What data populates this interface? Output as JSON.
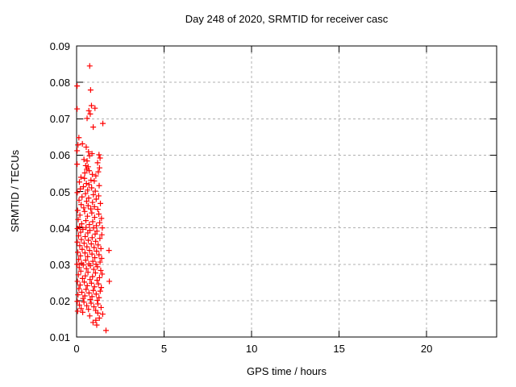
{
  "window": {
    "background_color": "#ffffff"
  },
  "chart_data": {
    "type": "scatter",
    "title": "Day 248 of 2020, SRMTID for receiver casc",
    "xlabel": "GPS time / hours",
    "ylabel": "SRMTID / TECUs",
    "xlim": [
      0,
      24
    ],
    "ylim": [
      0.01,
      0.09
    ],
    "xtick_values": [
      0,
      5,
      10,
      15,
      20
    ],
    "xtick_labels": [
      "0",
      "5",
      "10",
      "15",
      "20"
    ],
    "ytick_values": [
      0.01,
      0.02,
      0.03,
      0.04,
      0.05,
      0.06,
      0.07,
      0.08,
      0.09
    ],
    "ytick_labels": [
      "0.01",
      "0.02",
      "0.03",
      "0.04",
      "0.05",
      "0.06",
      "0.07",
      "0.08",
      "0.09"
    ],
    "grid": true,
    "legend_position": "none",
    "marker": "plus",
    "marker_color": "#ff0000",
    "grid_color": "#b0b0b0",
    "axis_color": "#000000",
    "points": [
      [
        0.75,
        0.0845
      ],
      [
        0.03,
        0.079
      ],
      [
        0.8,
        0.0779
      ],
      [
        0.85,
        0.0736
      ],
      [
        1.05,
        0.0729
      ],
      [
        0.03,
        0.0727
      ],
      [
        0.7,
        0.0722
      ],
      [
        0.78,
        0.0713
      ],
      [
        0.6,
        0.0701
      ],
      [
        1.5,
        0.0687
      ],
      [
        0.95,
        0.0677
      ],
      [
        0.13,
        0.0648
      ],
      [
        0.33,
        0.0631
      ],
      [
        0.08,
        0.0628
      ],
      [
        0.55,
        0.0622
      ],
      [
        0.03,
        0.0612
      ],
      [
        0.68,
        0.0609
      ],
      [
        0.88,
        0.0604
      ],
      [
        1.28,
        0.0601
      ],
      [
        0.74,
        0.0598
      ],
      [
        1.34,
        0.0592
      ],
      [
        0.42,
        0.0588
      ],
      [
        0.6,
        0.0584
      ],
      [
        1.2,
        0.0579
      ],
      [
        0.03,
        0.0575
      ],
      [
        0.52,
        0.0571
      ],
      [
        0.66,
        0.0568
      ],
      [
        1.31,
        0.0565
      ],
      [
        0.58,
        0.0561
      ],
      [
        0.72,
        0.0557
      ],
      [
        1.24,
        0.0554
      ],
      [
        0.47,
        0.0551
      ],
      [
        0.9,
        0.0547
      ],
      [
        1.1,
        0.0543
      ],
      [
        0.25,
        0.0539
      ],
      [
        0.45,
        0.0536
      ],
      [
        0.82,
        0.0531
      ],
      [
        1.01,
        0.0529
      ],
      [
        0.16,
        0.0526
      ],
      [
        0.56,
        0.0522
      ],
      [
        0.71,
        0.0519
      ],
      [
        1.29,
        0.0516
      ],
      [
        0.39,
        0.0513
      ],
      [
        0.86,
        0.051
      ],
      [
        0.21,
        0.0507
      ],
      [
        0.63,
        0.0504
      ],
      [
        1.07,
        0.0501
      ],
      [
        0.04,
        0.0497
      ],
      [
        0.51,
        0.0494
      ],
      [
        0.96,
        0.0491
      ],
      [
        1.26,
        0.0488
      ],
      [
        0.31,
        0.0485
      ],
      [
        0.69,
        0.0482
      ],
      [
        1.12,
        0.0479
      ],
      [
        0.14,
        0.0476
      ],
      [
        0.57,
        0.0473
      ],
      [
        0.91,
        0.047
      ],
      [
        1.36,
        0.0467
      ],
      [
        0.26,
        0.0464
      ],
      [
        0.66,
        0.0461
      ],
      [
        1.02,
        0.0458
      ],
      [
        0.41,
        0.0455
      ],
      [
        0.81,
        0.0452
      ],
      [
        1.21,
        0.0451
      ],
      [
        0.06,
        0.0448
      ],
      [
        0.46,
        0.0445
      ],
      [
        0.87,
        0.0441
      ],
      [
        1.27,
        0.0438
      ],
      [
        0.19,
        0.0435
      ],
      [
        0.62,
        0.0432
      ],
      [
        1.03,
        0.0429
      ],
      [
        1.42,
        0.0426
      ],
      [
        0.09,
        0.0423
      ],
      [
        0.53,
        0.042
      ],
      [
        0.92,
        0.0417
      ],
      [
        1.32,
        0.0414
      ],
      [
        0.29,
        0.0411
      ],
      [
        0.73,
        0.0409
      ],
      [
        1.13,
        0.0406
      ],
      [
        0.17,
        0.0403
      ],
      [
        0.54,
        0.0401
      ],
      [
        0.97,
        0.04
      ],
      [
        1.47,
        0.04
      ],
      [
        0.05,
        0.0398
      ],
      [
        0.36,
        0.0396
      ],
      [
        0.76,
        0.0393
      ],
      [
        1.16,
        0.0391
      ],
      [
        0.23,
        0.0388
      ],
      [
        0.64,
        0.0386
      ],
      [
        1.06,
        0.0383
      ],
      [
        1.44,
        0.0381
      ],
      [
        0.11,
        0.0378
      ],
      [
        0.49,
        0.0376
      ],
      [
        0.89,
        0.0373
      ],
      [
        1.33,
        0.0371
      ],
      [
        0.27,
        0.0368
      ],
      [
        0.67,
        0.0366
      ],
      [
        1.09,
        0.0363
      ],
      [
        0.04,
        0.0361
      ],
      [
        0.43,
        0.0358
      ],
      [
        0.84,
        0.0356
      ],
      [
        1.23,
        0.0353
      ],
      [
        0.18,
        0.0351
      ],
      [
        0.59,
        0.0348
      ],
      [
        1.0,
        0.0346
      ],
      [
        1.39,
        0.0343
      ],
      [
        0.32,
        0.0341
      ],
      [
        0.74,
        0.0338
      ],
      [
        1.85,
        0.0338
      ],
      [
        1.14,
        0.0336
      ],
      [
        0.07,
        0.0333
      ],
      [
        0.48,
        0.0331
      ],
      [
        0.88,
        0.0328
      ],
      [
        1.28,
        0.0326
      ],
      [
        0.22,
        0.0323
      ],
      [
        0.63,
        0.0321
      ],
      [
        1.04,
        0.0318
      ],
      [
        1.43,
        0.0316
      ],
      [
        0.12,
        0.0313
      ],
      [
        0.52,
        0.0311
      ],
      [
        0.93,
        0.0308
      ],
      [
        1.34,
        0.0306
      ],
      [
        0.28,
        0.0303
      ],
      [
        0.7,
        0.0301
      ],
      [
        1.11,
        0.03
      ],
      [
        0.03,
        0.03
      ],
      [
        0.38,
        0.0298
      ],
      [
        0.79,
        0.0296
      ],
      [
        1.19,
        0.0293
      ],
      [
        0.15,
        0.0291
      ],
      [
        0.56,
        0.0288
      ],
      [
        0.98,
        0.0286
      ],
      [
        1.38,
        0.0283
      ],
      [
        0.24,
        0.0281
      ],
      [
        0.65,
        0.0278
      ],
      [
        1.08,
        0.0276
      ],
      [
        1.46,
        0.0273
      ],
      [
        0.1,
        0.0271
      ],
      [
        0.5,
        0.0268
      ],
      [
        0.91,
        0.0266
      ],
      [
        1.31,
        0.0263
      ],
      [
        0.34,
        0.0261
      ],
      [
        0.77,
        0.0258
      ],
      [
        1.17,
        0.0256
      ],
      [
        0.05,
        0.0253
      ],
      [
        1.87,
        0.0253
      ],
      [
        0.44,
        0.0251
      ],
      [
        0.85,
        0.0248
      ],
      [
        1.25,
        0.0246
      ],
      [
        0.2,
        0.0243
      ],
      [
        0.61,
        0.0241
      ],
      [
        1.02,
        0.0238
      ],
      [
        1.41,
        0.0236
      ],
      [
        0.13,
        0.0233
      ],
      [
        0.54,
        0.0231
      ],
      [
        0.95,
        0.0228
      ],
      [
        1.35,
        0.0226
      ],
      [
        0.3,
        0.0223
      ],
      [
        0.71,
        0.0221
      ],
      [
        1.12,
        0.0218
      ],
      [
        0.08,
        0.0216
      ],
      [
        0.47,
        0.0213
      ],
      [
        0.88,
        0.0211
      ],
      [
        1.28,
        0.0208
      ],
      [
        0.37,
        0.0206
      ],
      [
        0.78,
        0.0203
      ],
      [
        1.18,
        0.0201
      ],
      [
        0.04,
        0.0198
      ],
      [
        0.42,
        0.0196
      ],
      [
        0.83,
        0.0193
      ],
      [
        1.22,
        0.0191
      ],
      [
        0.16,
        0.0188
      ],
      [
        0.58,
        0.0186
      ],
      [
        0.99,
        0.0183
      ],
      [
        1.4,
        0.0181
      ],
      [
        0.26,
        0.0178
      ],
      [
        0.68,
        0.0176
      ],
      [
        1.09,
        0.0173
      ],
      [
        0.06,
        0.0171
      ],
      [
        0.35,
        0.0168
      ],
      [
        1.21,
        0.0166
      ],
      [
        1.49,
        0.0163
      ],
      [
        0.75,
        0.0158
      ],
      [
        1.3,
        0.0152
      ],
      [
        1.1,
        0.0146
      ],
      [
        0.94,
        0.014
      ],
      [
        1.15,
        0.0133
      ],
      [
        1.68,
        0.0118
      ]
    ]
  }
}
